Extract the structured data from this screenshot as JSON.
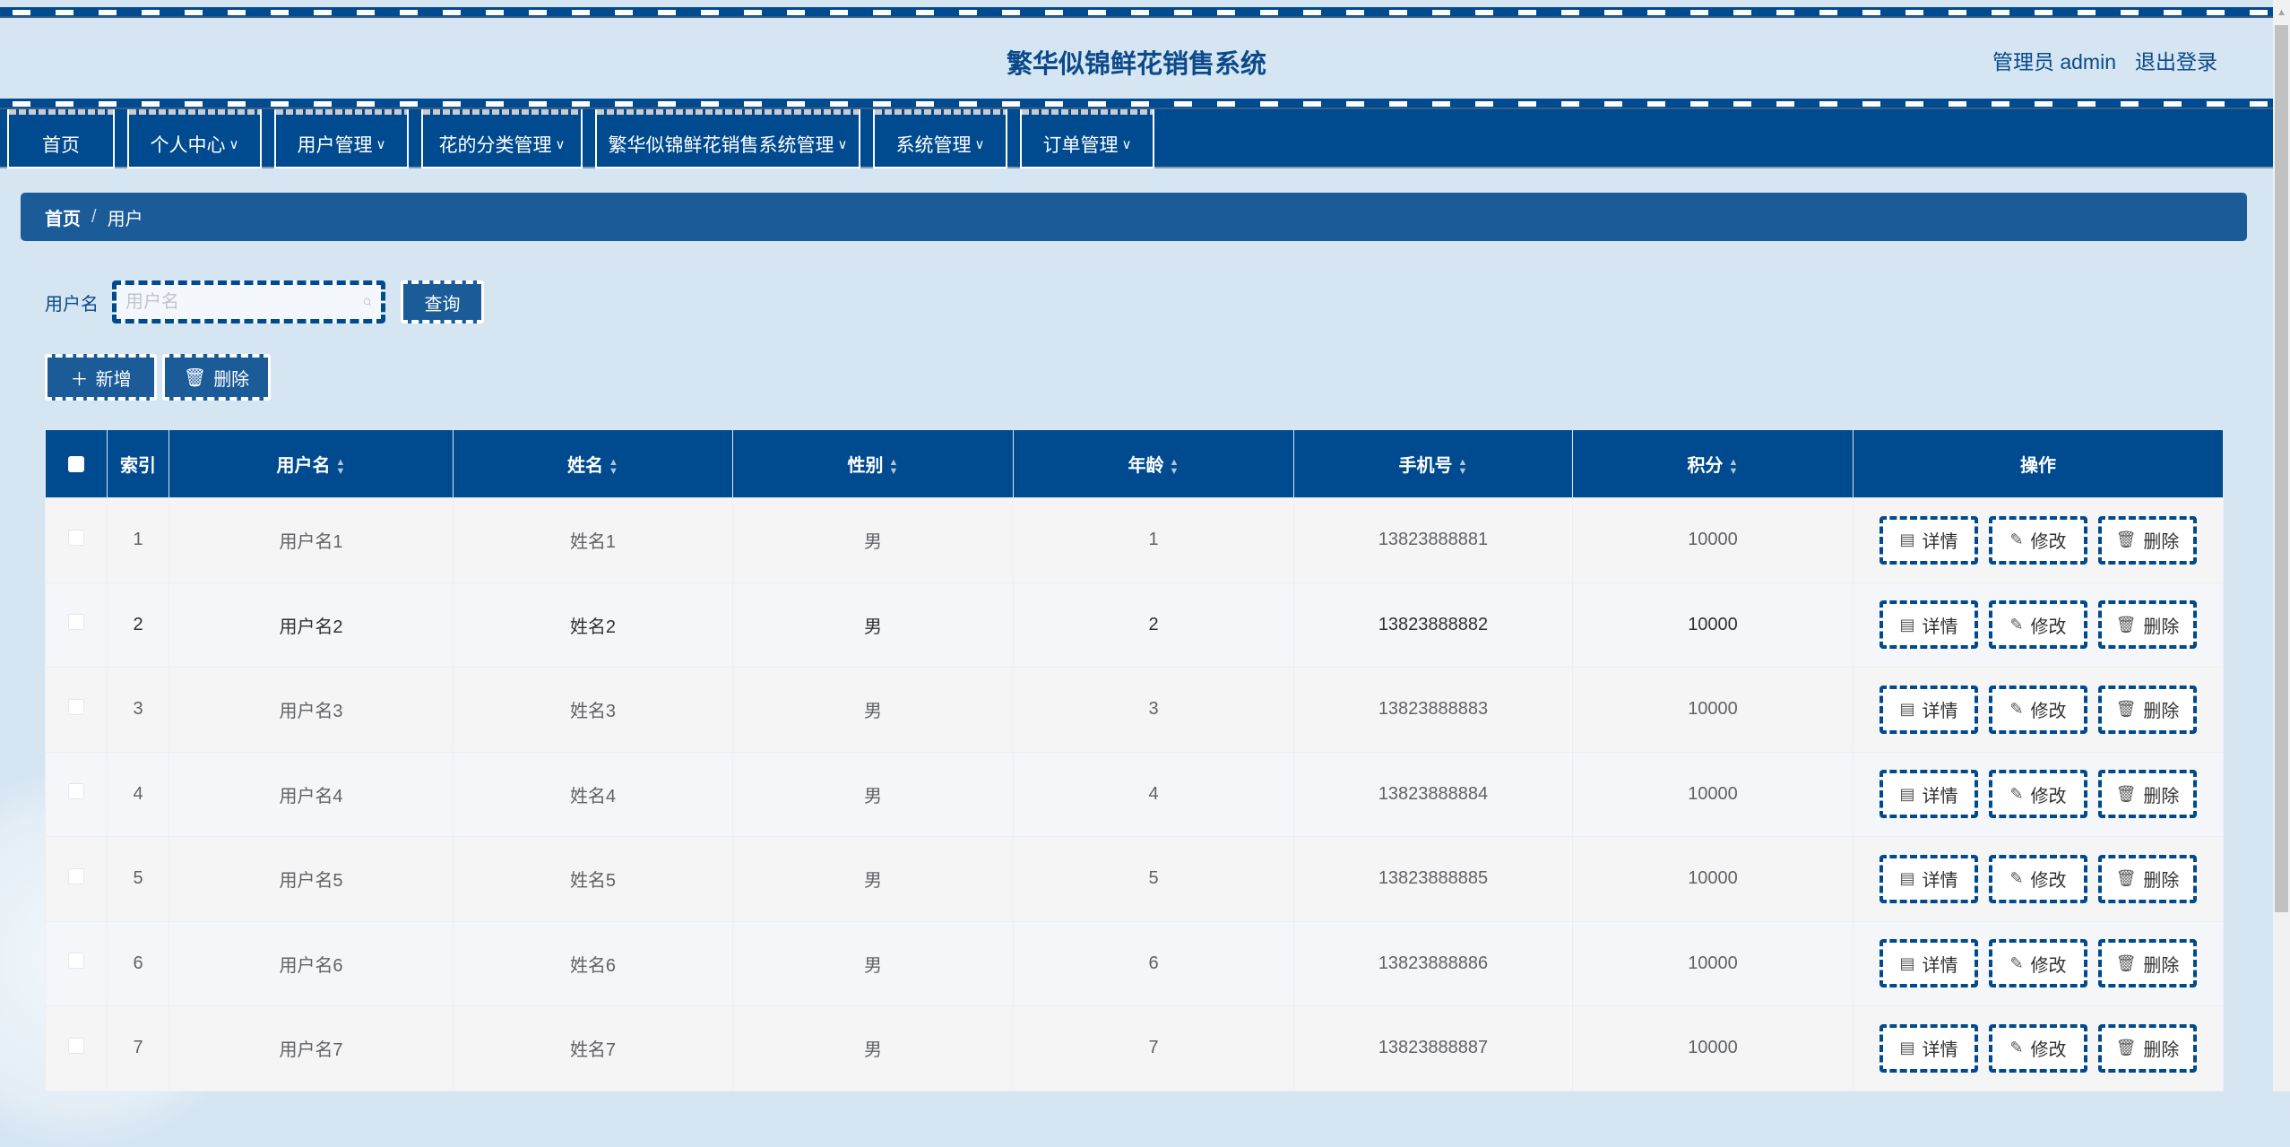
{
  "header": {
    "title": "繁华似锦鲜花销售系统",
    "user": "管理员 admin",
    "logout": "退出登录"
  },
  "nav": [
    {
      "label": "首页",
      "dropdown": false
    },
    {
      "label": "个人中心",
      "dropdown": true
    },
    {
      "label": "用户管理",
      "dropdown": true
    },
    {
      "label": "花的分类管理",
      "dropdown": true
    },
    {
      "label": "繁华似锦鲜花销售系统管理",
      "dropdown": true
    },
    {
      "label": "系统管理",
      "dropdown": true
    },
    {
      "label": "订单管理",
      "dropdown": true
    }
  ],
  "breadcrumb": {
    "home": "首页",
    "sep": "/",
    "current": "用户"
  },
  "search": {
    "label": "用户名",
    "placeholder": "用户名",
    "value": "",
    "query_button": "查询"
  },
  "actions": {
    "add": "新增",
    "delete": "删除"
  },
  "table": {
    "columns": [
      "索引",
      "用户名",
      "姓名",
      "性别",
      "年龄",
      "手机号",
      "积分",
      "操作"
    ],
    "row_actions": {
      "detail": "详情",
      "edit": "修改",
      "delete": "删除"
    },
    "rows": [
      [
        "1",
        "用户名1",
        "姓名1",
        "男",
        "1",
        "13823888881",
        "10000"
      ],
      [
        "2",
        "用户名2",
        "姓名2",
        "男",
        "2",
        "13823888882",
        "10000"
      ],
      [
        "3",
        "用户名3",
        "姓名3",
        "男",
        "3",
        "13823888883",
        "10000"
      ],
      [
        "4",
        "用户名4",
        "姓名4",
        "男",
        "4",
        "13823888884",
        "10000"
      ],
      [
        "5",
        "用户名5",
        "姓名5",
        "男",
        "5",
        "13823888885",
        "10000"
      ],
      [
        "6",
        "用户名6",
        "姓名6",
        "男",
        "6",
        "13823888886",
        "10000"
      ],
      [
        "7",
        "用户名7",
        "姓名7",
        "男",
        "7",
        "13823888887",
        "10000"
      ]
    ]
  },
  "colors": {
    "primary": "#004a8f",
    "accent": "#1b5b98",
    "background": "#d5e5f2"
  }
}
